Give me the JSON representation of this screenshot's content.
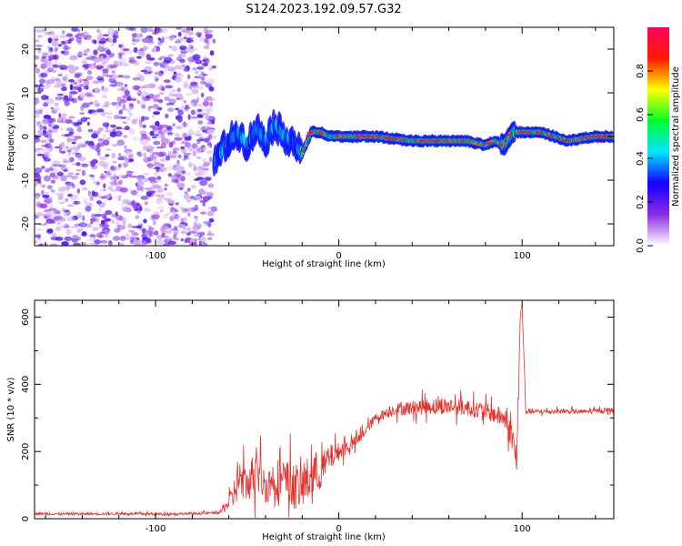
{
  "title": "S124.2023.192.09.57.G32",
  "colors": {
    "snr_line": "#e8302c",
    "axis": "#000000"
  },
  "chart_data": [
    {
      "type": "heatmap",
      "xlabel": "Height of straight line (km)",
      "ylabel": "Frequency (Hz)",
      "xlim": [
        -166,
        150
      ],
      "ylim": [
        -25,
        25
      ],
      "x_ticks": [
        -100,
        0,
        100
      ],
      "x_tick_labels": [
        "-100",
        "0",
        "100"
      ],
      "y_ticks": [
        -20,
        -10,
        0,
        10,
        20
      ],
      "y_tick_labels": [
        "-20",
        "-10",
        "0",
        "10",
        "20"
      ],
      "colorbar": {
        "label": "Normalized spectral amplitude",
        "range": [
          0,
          1
        ],
        "ticks": [
          0.0,
          0.2,
          0.4,
          0.6,
          0.8
        ],
        "tick_labels": [
          "0.0",
          "0.2",
          "0.4",
          "0.6",
          "0.8"
        ],
        "colormap": [
          "#ffffff",
          "#8a2be2",
          "#1400ff",
          "#00e5ff",
          "#00ff2a",
          "#ffff00",
          "#ff1a00",
          "#ff0060"
        ]
      },
      "ridge": {
        "noise_region_x": [
          -166,
          -68
        ],
        "onset_x": -68,
        "track": [
          [
            -68,
            -6
          ],
          [
            -62,
            -2
          ],
          [
            -55,
            1
          ],
          [
            -50,
            -2
          ],
          [
            -45,
            2
          ],
          [
            -40,
            -1
          ],
          [
            -35,
            3
          ],
          [
            -30,
            0
          ],
          [
            -25,
            -1
          ],
          [
            -20,
            -4
          ],
          [
            -15,
            1
          ],
          [
            -10,
            1
          ],
          [
            -5,
            0
          ],
          [
            0,
            0
          ],
          [
            20,
            0
          ],
          [
            40,
            -1
          ],
          [
            60,
            -1
          ],
          [
            70,
            -1
          ],
          [
            80,
            -2
          ],
          [
            85,
            -1
          ],
          [
            90,
            -2
          ],
          [
            95,
            1
          ],
          [
            110,
            1
          ],
          [
            125,
            -1
          ],
          [
            140,
            0
          ],
          [
            150,
            0
          ]
        ]
      }
    },
    {
      "type": "line",
      "xlabel": "Height of straight line (km)",
      "ylabel": "SNR (10 * v/v)",
      "xlim": [
        -166,
        150
      ],
      "ylim": [
        0,
        650
      ],
      "x_ticks": [
        -100,
        0,
        100
      ],
      "x_tick_labels": [
        "-100",
        "0",
        "100"
      ],
      "y_ticks": [
        0,
        200,
        400,
        600
      ],
      "y_tick_labels": [
        "0",
        "200",
        "400",
        "600"
      ],
      "series": [
        {
          "x": [
            -166,
            -140,
            -120,
            -100,
            -80,
            -65,
            -58,
            -55,
            -50,
            -45,
            -40,
            -35,
            -30,
            -25,
            -20,
            -15,
            -10,
            -5,
            0,
            10,
            20,
            30,
            40,
            50,
            60,
            70,
            80,
            85,
            90,
            95,
            97,
            99,
            100,
            102,
            110,
            120,
            130,
            140,
            150
          ],
          "y": [
            15,
            14,
            15,
            14,
            15,
            18,
            60,
            120,
            100,
            150,
            95,
            120,
            110,
            100,
            90,
            130,
            140,
            180,
            200,
            230,
            300,
            325,
            330,
            335,
            335,
            330,
            320,
            310,
            300,
            240,
            160,
            600,
            640,
            320,
            318,
            320,
            318,
            320,
            325
          ],
          "spread": [
            8,
            8,
            8,
            8,
            8,
            8,
            80,
            150,
            110,
            170,
            110,
            140,
            150,
            160,
            140,
            170,
            120,
            90,
            60,
            40,
            30,
            40,
            50,
            55,
            55,
            55,
            55,
            60,
            70,
            90,
            70,
            40,
            20,
            20,
            15,
            15,
            15,
            15,
            15
          ]
        }
      ]
    }
  ]
}
